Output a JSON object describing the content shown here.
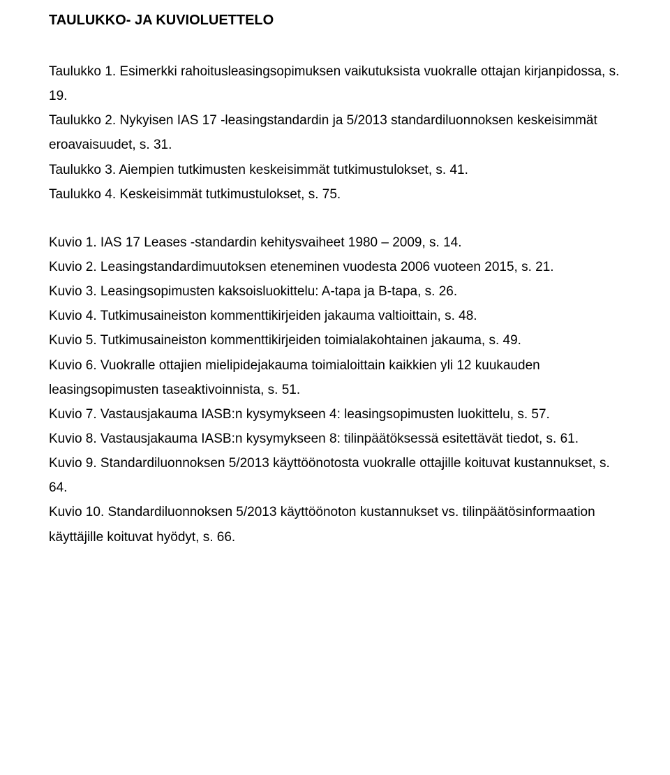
{
  "title": "TAULUKKO- JA KUVIOLUETTELO",
  "taulukko_block": "Taulukko 1. Esimerkki rahoitusleasingsopimuksen vaikutuksista vuokralle ottajan kirjanpidossa, s. 19.\nTaulukko 2. Nykyisen IAS 17 -leasingstandardin ja 5/2013 standardiluonnoksen keskeisimmät eroavaisuudet, s. 31.\nTaulukko 3. Aiempien tutkimusten keskeisimmät tutkimustulokset, s. 41.\nTaulukko 4. Keskeisimmät tutkimustulokset, s. 75.",
  "kuvio_block": "Kuvio 1. IAS 17 Leases -standardin kehitysvaiheet 1980 – 2009, s. 14.\nKuvio 2. Leasingstandardimuutoksen eteneminen vuodesta 2006 vuoteen 2015, s. 21.\nKuvio 3. Leasingsopimusten kaksoisluokittelu: A-tapa ja B-tapa, s. 26.\nKuvio 4. Tutkimusaineiston kommenttikirjeiden jakauma valtioittain, s. 48.\nKuvio 5. Tutkimusaineiston kommenttikirjeiden toimialakohtainen jakauma, s. 49.\nKuvio 6. Vuokralle ottajien mielipidejakauma toimialoittain kaikkien yli 12 kuukauden leasingsopimusten taseaktivoinnista, s. 51.\nKuvio 7. Vastausjakauma IASB:n kysymykseen 4: leasingsopimusten luokittelu, s. 57.\nKuvio 8. Vastausjakauma IASB:n kysymykseen 8: tilinpäätöksessä esitettävät tiedot, s. 61.\nKuvio 9. Standardiluonnoksen 5/2013 käyttöönotosta vuokralle ottajille koituvat kustannukset, s. 64.\nKuvio 10. Standardiluonnoksen 5/2013 käyttöönoton kustannukset vs. tilinpäätösinformaation käyttäjille koituvat hyödyt, s. 66."
}
